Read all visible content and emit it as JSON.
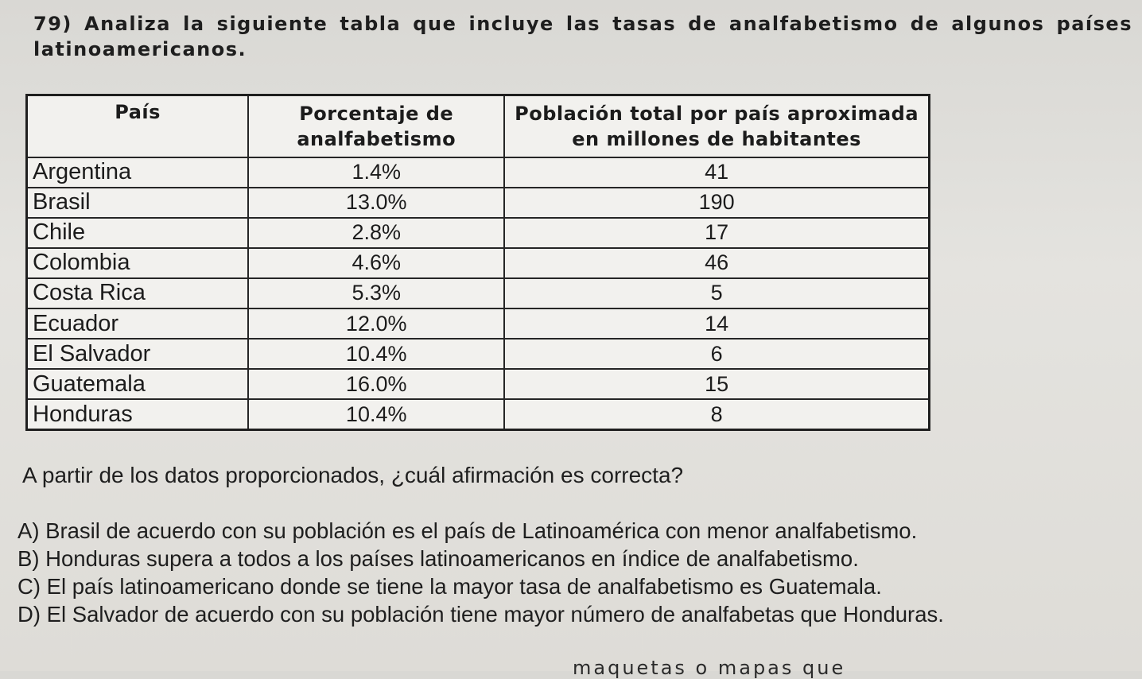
{
  "question": {
    "text": "79) Analiza la siguiente tabla que incluye las tasas de analfabetismo de algunos países latinoamericanos."
  },
  "table": {
    "headers": [
      "País",
      "Porcentaje de analfabetismo",
      "Población total por país aproximada en millones de habitantes"
    ],
    "rows": [
      {
        "country": "Argentina",
        "percentage": "1.4%",
        "population": "41"
      },
      {
        "country": "Brasil",
        "percentage": "13.0%",
        "population": "190"
      },
      {
        "country": "Chile",
        "percentage": "2.8%",
        "population": "17"
      },
      {
        "country": "Colombia",
        "percentage": "4.6%",
        "population": "46"
      },
      {
        "country": "Costa Rica",
        "percentage": "5.3%",
        "population": "5"
      },
      {
        "country": "Ecuador",
        "percentage": "12.0%",
        "population": "14"
      },
      {
        "country": "El Salvador",
        "percentage": "10.4%",
        "population": "6"
      },
      {
        "country": "Guatemala",
        "percentage": "16.0%",
        "population": "15"
      },
      {
        "country": "Honduras",
        "percentage": "10.4%",
        "population": "8"
      }
    ]
  },
  "prompt": "A partir de los datos proporcionados, ¿cuál afirmación es correcta?",
  "options": [
    "A) Brasil de acuerdo con su población es el país de Latinoamérica con menor analfabetismo.",
    "B) Honduras supera a todos a los países latinoamericanos en índice de analfabetismo.",
    "C) El país latinoamericano donde se tiene la mayor tasa de analfabetismo es Guatemala.",
    "D) El Salvador de acuerdo con su población tiene mayor número de analfabetas que Honduras."
  ],
  "next_question_fragment": "maquetas o mapas que"
}
